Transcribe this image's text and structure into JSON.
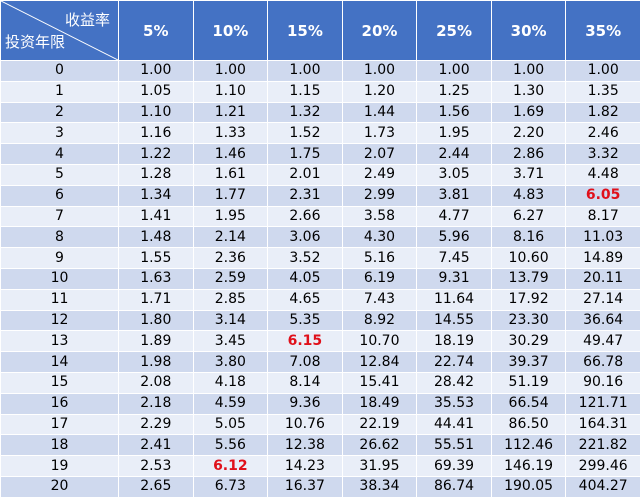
{
  "header": {
    "corner_top": "收益率",
    "corner_bottom": "投资年限",
    "rates": [
      "5%",
      "10%",
      "15%",
      "20%",
      "25%",
      "30%",
      "35%"
    ]
  },
  "rows": [
    {
      "year": "0",
      "values": [
        "1.00",
        "1.00",
        "1.00",
        "1.00",
        "1.00",
        "1.00",
        "1.00"
      ]
    },
    {
      "year": "1",
      "values": [
        "1.05",
        "1.10",
        "1.15",
        "1.20",
        "1.25",
        "1.30",
        "1.35"
      ]
    },
    {
      "year": "2",
      "values": [
        "1.10",
        "1.21",
        "1.32",
        "1.44",
        "1.56",
        "1.69",
        "1.82"
      ]
    },
    {
      "year": "3",
      "values": [
        "1.16",
        "1.33",
        "1.52",
        "1.73",
        "1.95",
        "2.20",
        "2.46"
      ]
    },
    {
      "year": "4",
      "values": [
        "1.22",
        "1.46",
        "1.75",
        "2.07",
        "2.44",
        "2.86",
        "3.32"
      ]
    },
    {
      "year": "5",
      "values": [
        "1.28",
        "1.61",
        "2.01",
        "2.49",
        "3.05",
        "3.71",
        "4.48"
      ]
    },
    {
      "year": "6",
      "values": [
        "1.34",
        "1.77",
        "2.31",
        "2.99",
        "3.81",
        "4.83",
        "6.05"
      ]
    },
    {
      "year": "7",
      "values": [
        "1.41",
        "1.95",
        "2.66",
        "3.58",
        "4.77",
        "6.27",
        "8.17"
      ]
    },
    {
      "year": "8",
      "values": [
        "1.48",
        "2.14",
        "3.06",
        "4.30",
        "5.96",
        "8.16",
        "11.03"
      ]
    },
    {
      "year": "9",
      "values": [
        "1.55",
        "2.36",
        "3.52",
        "5.16",
        "7.45",
        "10.60",
        "14.89"
      ]
    },
    {
      "year": "10",
      "values": [
        "1.63",
        "2.59",
        "4.05",
        "6.19",
        "9.31",
        "13.79",
        "20.11"
      ]
    },
    {
      "year": "11",
      "values": [
        "1.71",
        "2.85",
        "4.65",
        "7.43",
        "11.64",
        "17.92",
        "27.14"
      ]
    },
    {
      "year": "12",
      "values": [
        "1.80",
        "3.14",
        "5.35",
        "8.92",
        "14.55",
        "23.30",
        "36.64"
      ]
    },
    {
      "year": "13",
      "values": [
        "1.89",
        "3.45",
        "6.15",
        "10.70",
        "18.19",
        "30.29",
        "49.47"
      ]
    },
    {
      "year": "14",
      "values": [
        "1.98",
        "3.80",
        "7.08",
        "12.84",
        "22.74",
        "39.37",
        "66.78"
      ]
    },
    {
      "year": "15",
      "values": [
        "2.08",
        "4.18",
        "8.14",
        "15.41",
        "28.42",
        "51.19",
        "90.16"
      ]
    },
    {
      "year": "16",
      "values": [
        "2.18",
        "4.59",
        "9.36",
        "18.49",
        "35.53",
        "66.54",
        "121.71"
      ]
    },
    {
      "year": "17",
      "values": [
        "2.29",
        "5.05",
        "10.76",
        "22.19",
        "44.41",
        "86.50",
        "164.31"
      ]
    },
    {
      "year": "18",
      "values": [
        "2.41",
        "5.56",
        "12.38",
        "26.62",
        "55.51",
        "112.46",
        "221.82"
      ]
    },
    {
      "year": "19",
      "values": [
        "2.53",
        "6.12",
        "14.23",
        "31.95",
        "69.39",
        "146.19",
        "299.46"
      ]
    },
    {
      "year": "20",
      "values": [
        "2.65",
        "6.73",
        "16.37",
        "38.34",
        "86.74",
        "190.05",
        "404.27"
      ]
    }
  ],
  "highlights": [
    {
      "row": 6,
      "col": 6
    },
    {
      "row": 13,
      "col": 2
    },
    {
      "row": 19,
      "col": 1
    }
  ],
  "colors": {
    "header_bg": "#4472c4",
    "header_text": "#ffffff",
    "row_dark": "#cfd9ee",
    "row_light": "#e9eef8",
    "highlight_text": "#e0101a"
  }
}
